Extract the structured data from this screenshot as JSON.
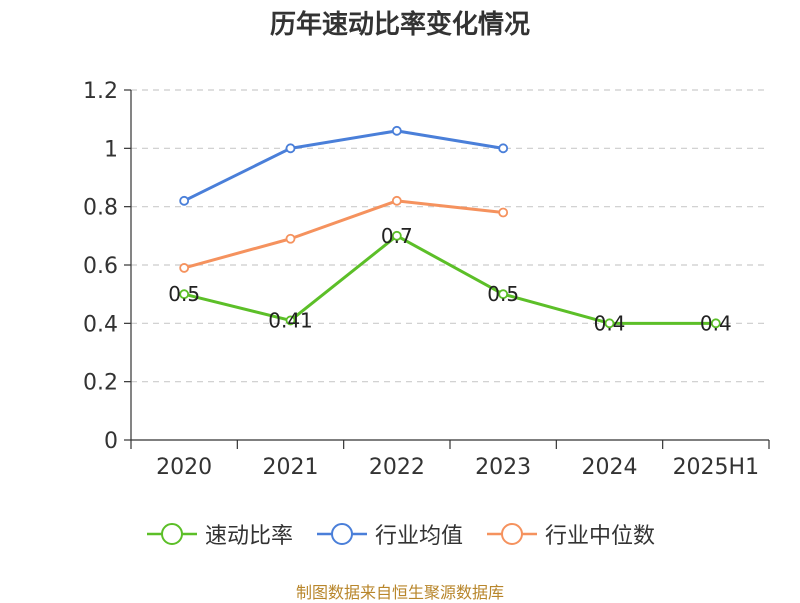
{
  "chart_data": {
    "type": "line",
    "title": "历年速动比率变化情况",
    "categories": [
      "2020",
      "2021",
      "2022",
      "2023",
      "2024",
      "2025H1"
    ],
    "ylim": [
      0,
      1.2
    ],
    "yticks": [
      "0",
      "0.2",
      "0.4",
      "0.6",
      "0.8",
      "1",
      "1.2"
    ],
    "grid": true,
    "legend_position": "bottom",
    "series": [
      {
        "name": "速动比率",
        "color": "#5cbf28",
        "values": [
          0.5,
          0.41,
          0.7,
          0.5,
          0.4,
          0.4
        ],
        "labels": [
          "0.5",
          "0.41",
          "0.7",
          "0.5",
          "0.4",
          "0.4"
        ],
        "show_labels": true
      },
      {
        "name": "行业均值",
        "color": "#4a7fd9",
        "values": [
          0.82,
          1.0,
          1.06,
          1.0,
          null,
          null
        ],
        "show_labels": false
      },
      {
        "name": "行业中位数",
        "color": "#f5925e",
        "values": [
          0.59,
          0.69,
          0.82,
          0.78,
          null,
          null
        ],
        "show_labels": false
      }
    ]
  },
  "footer": {
    "source": "制图数据来自恒生聚源数据库"
  }
}
